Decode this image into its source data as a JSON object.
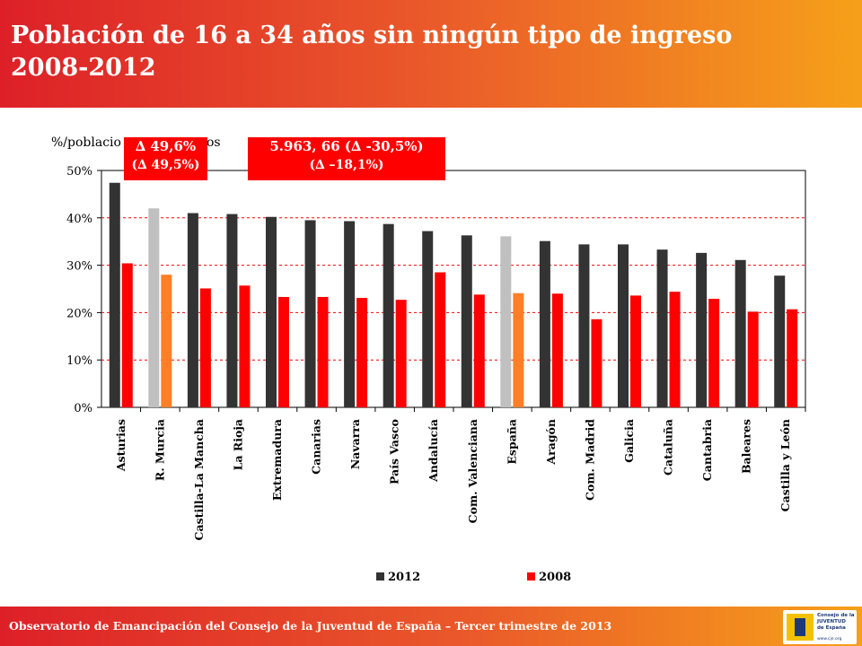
{
  "header": {
    "title_line1": "Población de 16 a 34 años sin ningún tipo de ingreso",
    "title_line2": "2008-2012"
  },
  "callouts": {
    "left_line1": "∆ 49,6%",
    "left_line2": "(∆ 49,5%)",
    "right_line1": "5.963, 66 (∆ -30,5%)",
    "right_line2": "(∆ –18,1%)"
  },
  "footer": {
    "text": "Observatorio de Emancipación del Consejo de la Juventud de España – Tercer trimestre de 2013",
    "logo_text": "Consejo de la\nJUVENTUD\nde España",
    "logo_url": "www.cje.org"
  },
  "colors": {
    "series_2012": "#333333",
    "series_2008": "#ff0000",
    "highlight_2012": "#c0c0c0",
    "highlight_2008": "#ff7f27",
    "gridline": "#ff0000"
  },
  "chart_data": {
    "type": "bar",
    "ylabel": "%/poblacio... jóvenes",
    "ylabel_visible": "%/poblacio",
    "ylabel_tail": "os",
    "ylim": [
      0,
      50
    ],
    "yticks": [
      "0%",
      "10%",
      "20%",
      "30%",
      "40%",
      "50%"
    ],
    "grid": true,
    "legend_position": "bottom",
    "categories": [
      "Asturias",
      "R. Murcia",
      "Castilla-La Mancha",
      "La Rioja",
      "Extremadura",
      "Canarias",
      "Navarra",
      "País Vasco",
      "Andalucía",
      "Com. Valenciana",
      "España",
      "Aragón",
      "Com. Madrid",
      "Galicia",
      "Cataluña",
      "Cantabria",
      "Baleares",
      "Castilla y León"
    ],
    "highlighted": [
      "R. Murcia",
      "España"
    ],
    "series": [
      {
        "name": "2012",
        "values": [
          47.4,
          42.0,
          41.0,
          40.8,
          40.2,
          39.5,
          39.3,
          38.7,
          37.2,
          36.3,
          36.1,
          35.1,
          34.4,
          34.4,
          33.3,
          32.6,
          31.1,
          27.8
        ]
      },
      {
        "name": "2008",
        "values": [
          30.4,
          28.0,
          25.1,
          25.7,
          23.3,
          23.3,
          23.1,
          22.7,
          28.5,
          23.8,
          24.1,
          24.0,
          18.6,
          23.6,
          24.4,
          22.9,
          20.2,
          20.7
        ]
      }
    ]
  }
}
